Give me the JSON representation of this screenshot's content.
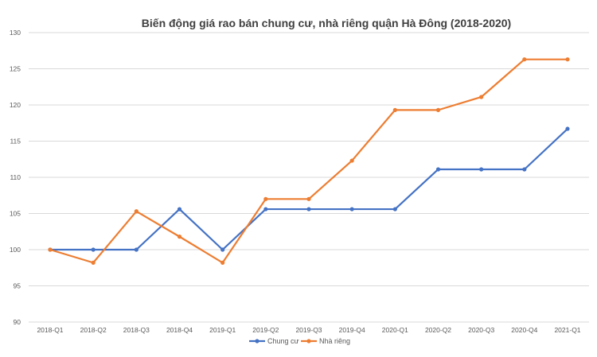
{
  "chart_data": {
    "type": "line",
    "title": "Biến động giá rao bán chung cư, nhà riêng quận Hà Đông (2018-2020)",
    "xlabel": "",
    "ylabel": "",
    "categories": [
      "2018-Q1",
      "2018-Q2",
      "2018-Q3",
      "2018-Q4",
      "2019-Q1",
      "2019-Q2",
      "2019-Q3",
      "2019-Q4",
      "2020-Q1",
      "2020-Q2",
      "2020-Q3",
      "2020-Q4",
      "2021-Q1"
    ],
    "ylim": [
      90,
      130
    ],
    "yticks": [
      90,
      95,
      100,
      105,
      110,
      115,
      120,
      125,
      130
    ],
    "grid": true,
    "legend_position": "bottom",
    "series": [
      {
        "name": "Chung cư",
        "color": "#4472c4",
        "values": [
          100,
          100,
          100,
          105.6,
          100,
          105.6,
          105.6,
          105.6,
          105.6,
          111.1,
          111.1,
          111.1,
          116.7
        ]
      },
      {
        "name": "Nhà riêng",
        "color": "#ed7d31",
        "values": [
          100,
          98.2,
          105.3,
          101.8,
          98.2,
          107.0,
          107.0,
          112.3,
          119.3,
          119.3,
          121.1,
          126.3,
          126.3
        ]
      }
    ]
  }
}
